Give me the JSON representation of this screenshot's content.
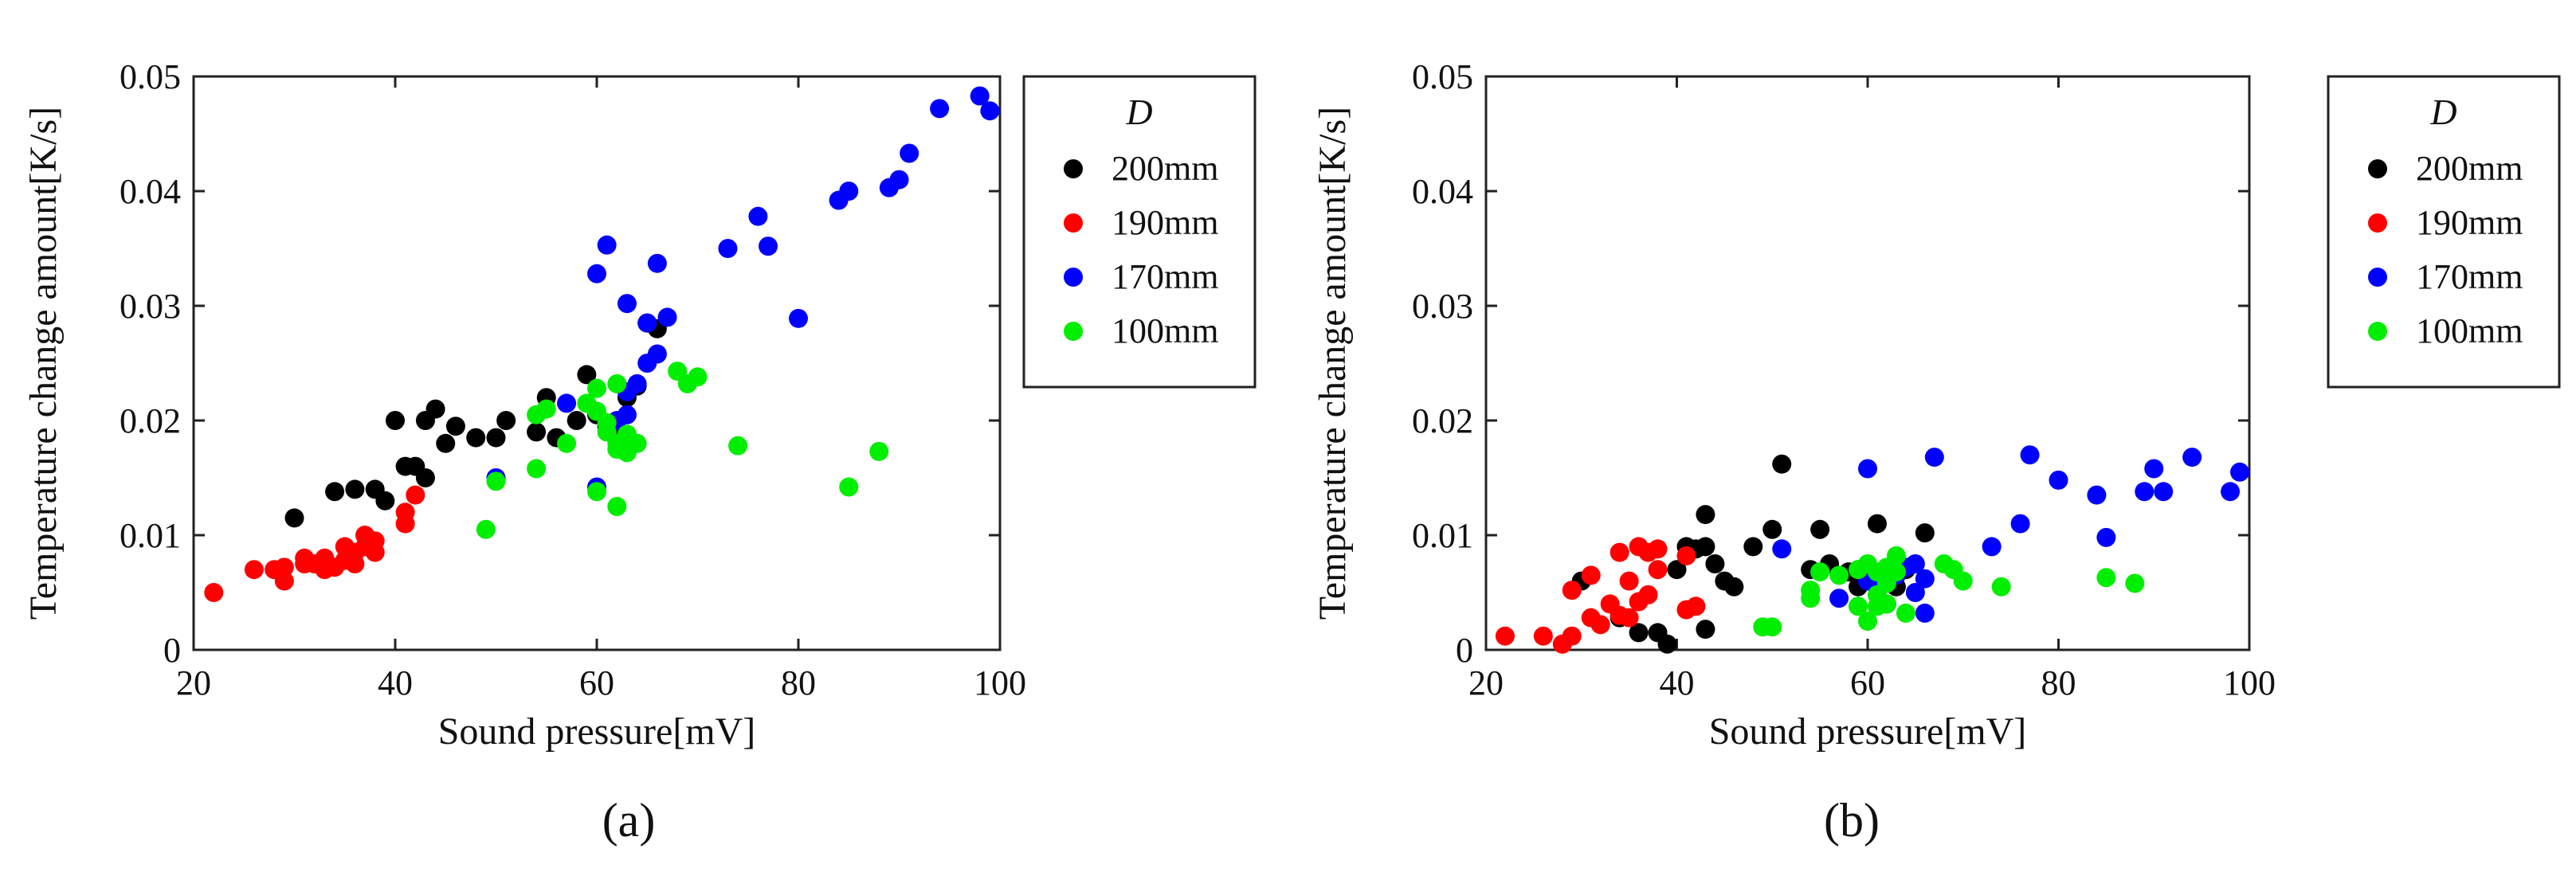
{
  "figure": {
    "panel_labels": [
      "(a)",
      "(b)"
    ]
  },
  "colors": {
    "200mm": "#000000",
    "190mm": "#ff0000",
    "170mm": "#0000ff",
    "100mm": "#00ee00"
  },
  "chart_data": [
    {
      "type": "scatter",
      "panel": "(a)",
      "title": "",
      "xlabel": "Sound pressure[mV]",
      "ylabel": "Temperature change amount[K/s]",
      "xlim": [
        20,
        100
      ],
      "ylim": [
        0,
        0.05
      ],
      "xticks": [
        "20",
        "40",
        "60",
        "80",
        "100"
      ],
      "yticks": [
        "0",
        "0.01",
        "0.02",
        "0.03",
        "0.04",
        "0.05"
      ],
      "legend_title": "D",
      "legend_position": "right",
      "series": [
        {
          "name": "200mm",
          "color": "#000000",
          "points": [
            [
              30,
              0.0115
            ],
            [
              34,
              0.0138
            ],
            [
              36,
              0.014
            ],
            [
              38,
              0.014
            ],
            [
              39,
              0.013
            ],
            [
              40,
              0.02
            ],
            [
              41,
              0.016
            ],
            [
              42,
              0.016
            ],
            [
              43,
              0.015
            ],
            [
              43,
              0.02
            ],
            [
              44,
              0.021
            ],
            [
              45,
              0.018
            ],
            [
              46,
              0.0195
            ],
            [
              48,
              0.0185
            ],
            [
              50,
              0.0185
            ],
            [
              51,
              0.02
            ],
            [
              54,
              0.019
            ],
            [
              55,
              0.022
            ],
            [
              56,
              0.0185
            ],
            [
              58,
              0.02
            ],
            [
              59,
              0.024
            ],
            [
              60,
              0.0205
            ],
            [
              61,
              0.0195
            ],
            [
              62,
              0.019
            ],
            [
              63,
              0.022
            ],
            [
              64,
              0.023
            ],
            [
              65,
              0.0285
            ],
            [
              66,
              0.028
            ]
          ]
        },
        {
          "name": "190mm",
          "color": "#ff0000",
          "points": [
            [
              22,
              0.005
            ],
            [
              26,
              0.007
            ],
            [
              28,
              0.007
            ],
            [
              29,
              0.0072
            ],
            [
              29,
              0.006
            ],
            [
              31,
              0.0075
            ],
            [
              31,
              0.008
            ],
            [
              32,
              0.0075
            ],
            [
              33,
              0.007
            ],
            [
              33,
              0.008
            ],
            [
              34,
              0.0072
            ],
            [
              35,
              0.0078
            ],
            [
              35,
              0.009
            ],
            [
              36,
              0.0085
            ],
            [
              36,
              0.0075
            ],
            [
              37,
              0.01
            ],
            [
              37,
              0.009
            ],
            [
              38,
              0.0085
            ],
            [
              38,
              0.0095
            ],
            [
              41,
              0.012
            ],
            [
              41,
              0.011
            ],
            [
              42,
              0.0135
            ]
          ]
        },
        {
          "name": "170mm",
          "color": "#0000ff",
          "points": [
            [
              50,
              0.015
            ],
            [
              57,
              0.0215
            ],
            [
              60,
              0.0328
            ],
            [
              60,
              0.0142
            ],
            [
              61,
              0.0353
            ],
            [
              62,
              0.02
            ],
            [
              63,
              0.0205
            ],
            [
              63,
              0.0225
            ],
            [
              63,
              0.0302
            ],
            [
              64,
              0.0232
            ],
            [
              65,
              0.025
            ],
            [
              65,
              0.0285
            ],
            [
              66,
              0.0258
            ],
            [
              66,
              0.0337
            ],
            [
              67,
              0.029
            ],
            [
              73,
              0.035
            ],
            [
              76,
              0.0378
            ],
            [
              77,
              0.0352
            ],
            [
              80,
              0.0289
            ],
            [
              84,
              0.0392
            ],
            [
              85,
              0.04
            ],
            [
              89,
              0.0403
            ],
            [
              90,
              0.041
            ],
            [
              91,
              0.0433
            ],
            [
              94,
              0.0472
            ],
            [
              98,
              0.0483
            ],
            [
              99,
              0.047
            ]
          ]
        },
        {
          "name": "100mm",
          "color": "#00ee00",
          "points": [
            [
              49,
              0.0105
            ],
            [
              50,
              0.0147
            ],
            [
              54,
              0.0158
            ],
            [
              54,
              0.0205
            ],
            [
              55,
              0.021
            ],
            [
              57,
              0.018
            ],
            [
              59,
              0.0215
            ],
            [
              60,
              0.0208
            ],
            [
              60,
              0.0228
            ],
            [
              60,
              0.0138
            ],
            [
              61,
              0.019
            ],
            [
              61,
              0.0198
            ],
            [
              62,
              0.0175
            ],
            [
              62,
              0.018
            ],
            [
              62,
              0.0125
            ],
            [
              62,
              0.0232
            ],
            [
              63,
              0.0188
            ],
            [
              63,
              0.0172
            ],
            [
              64,
              0.018
            ],
            [
              68,
              0.0243
            ],
            [
              69,
              0.0232
            ],
            [
              70,
              0.0238
            ],
            [
              74,
              0.0178
            ],
            [
              85,
              0.0142
            ],
            [
              88,
              0.0173
            ]
          ]
        }
      ]
    },
    {
      "type": "scatter",
      "panel": "(b)",
      "title": "",
      "xlabel": "Sound pressure[mV]",
      "ylabel": "Temperature change amount[K/s]",
      "xlim": [
        20,
        100
      ],
      "ylim": [
        0,
        0.05
      ],
      "xticks": [
        "20",
        "40",
        "60",
        "80",
        "100"
      ],
      "yticks": [
        "0",
        "0.01",
        "0.02",
        "0.03",
        "0.04",
        "0.05"
      ],
      "legend_title": "D",
      "legend_position": "right",
      "series": [
        {
          "name": "200mm",
          "color": "#000000",
          "points": [
            [
              30,
              0.006
            ],
            [
              34,
              0.0028
            ],
            [
              36,
              0.0015
            ],
            [
              38,
              0.0015
            ],
            [
              39,
              0.0005
            ],
            [
              40,
              0.007
            ],
            [
              41,
              0.009
            ],
            [
              42,
              0.0088
            ],
            [
              43,
              0.0118
            ],
            [
              43,
              0.009
            ],
            [
              43,
              0.0018
            ],
            [
              44,
              0.0075
            ],
            [
              45,
              0.006
            ],
            [
              46,
              0.0055
            ],
            [
              48,
              0.009
            ],
            [
              50,
              0.0105
            ],
            [
              51,
              0.0162
            ],
            [
              54,
              0.007
            ],
            [
              55,
              0.0105
            ],
            [
              56,
              0.0075
            ],
            [
              58,
              0.0068
            ],
            [
              59,
              0.007
            ],
            [
              59,
              0.0055
            ],
            [
              61,
              0.011
            ],
            [
              62,
              0.0065
            ],
            [
              63,
              0.0055
            ],
            [
              64,
              0.007
            ],
            [
              66,
              0.0102
            ]
          ]
        },
        {
          "name": "190mm",
          "color": "#ff0000",
          "points": [
            [
              22,
              0.0012
            ],
            [
              26,
              0.0012
            ],
            [
              28,
              0.0005
            ],
            [
              29,
              0.0052
            ],
            [
              29,
              0.0012
            ],
            [
              31,
              0.0065
            ],
            [
              31,
              0.0028
            ],
            [
              32,
              0.0022
            ],
            [
              33,
              0.004
            ],
            [
              34,
              0.0085
            ],
            [
              34,
              0.003
            ],
            [
              35,
              0.006
            ],
            [
              35,
              0.0028
            ],
            [
              36,
              0.009
            ],
            [
              36,
              0.0042
            ],
            [
              37,
              0.0048
            ],
            [
              37,
              0.0085
            ],
            [
              38,
              0.007
            ],
            [
              38,
              0.0088
            ],
            [
              41,
              0.0035
            ],
            [
              41,
              0.0082
            ],
            [
              42,
              0.0038
            ]
          ]
        },
        {
          "name": "170mm",
          "color": "#0000ff",
          "points": [
            [
              51,
              0.0088
            ],
            [
              57,
              0.0045
            ],
            [
              60,
              0.0158
            ],
            [
              60,
              0.006
            ],
            [
              61,
              0.0055
            ],
            [
              62,
              0.004
            ],
            [
              62,
              0.0068
            ],
            [
              63,
              0.0065
            ],
            [
              64,
              0.0072
            ],
            [
              65,
              0.005
            ],
            [
              65,
              0.0075
            ],
            [
              66,
              0.0032
            ],
            [
              66,
              0.0062
            ],
            [
              67,
              0.0168
            ],
            [
              73,
              0.009
            ],
            [
              76,
              0.011
            ],
            [
              77,
              0.017
            ],
            [
              80,
              0.0148
            ],
            [
              84,
              0.0135
            ],
            [
              85,
              0.0098
            ],
            [
              89,
              0.0138
            ],
            [
              90,
              0.0158
            ],
            [
              91,
              0.0138
            ],
            [
              94,
              0.0168
            ],
            [
              98,
              0.0138
            ],
            [
              99,
              0.0155
            ]
          ]
        },
        {
          "name": "100mm",
          "color": "#00ee00",
          "points": [
            [
              49,
              0.002
            ],
            [
              50,
              0.002
            ],
            [
              54,
              0.0052
            ],
            [
              54,
              0.0045
            ],
            [
              55,
              0.0068
            ],
            [
              57,
              0.0065
            ],
            [
              59,
              0.0038
            ],
            [
              59,
              0.007
            ],
            [
              60,
              0.0025
            ],
            [
              60,
              0.0075
            ],
            [
              61,
              0.0048
            ],
            [
              61,
              0.0038
            ],
            [
              61,
              0.0068
            ],
            [
              62,
              0.004
            ],
            [
              62,
              0.0058
            ],
            [
              62,
              0.0072
            ],
            [
              63,
              0.0082
            ],
            [
              63,
              0.0068
            ],
            [
              64,
              0.0032
            ],
            [
              68,
              0.0075
            ],
            [
              69,
              0.007
            ],
            [
              70,
              0.006
            ],
            [
              74,
              0.0055
            ],
            [
              85,
              0.0063
            ],
            [
              88,
              0.0058
            ]
          ]
        }
      ]
    }
  ]
}
